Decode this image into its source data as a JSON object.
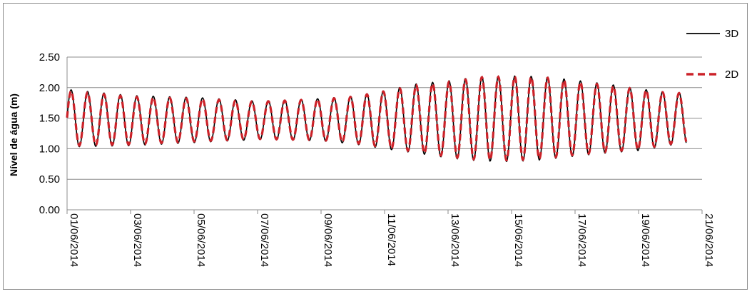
{
  "chart_data": {
    "type": "line",
    "ylabel": "Nível de água (m)",
    "xlabel": "",
    "ylim": [
      0,
      2.5
    ],
    "yticks": [
      "0.00",
      "0.50",
      "1.00",
      "1.50",
      "2.00",
      "2.50"
    ],
    "xticks": [
      "01/06/2014",
      "03/06/2014",
      "05/06/2014",
      "07/06/2014",
      "09/06/2014",
      "11/06/2014",
      "13/06/2014",
      "15/06/2014",
      "17/06/2014",
      "19/06/2014",
      "21/06/2014"
    ],
    "x_range": [
      "2014-06-01",
      "2014-06-21"
    ],
    "tide_period_hours": 12.42,
    "series": [
      {
        "name": "3D",
        "color": "#000000",
        "style": "solid",
        "x": [
          "2014-06-01",
          "2014-06-03",
          "2014-06-05",
          "2014-06-07",
          "2014-06-09",
          "2014-06-10",
          "2014-06-11",
          "2014-06-12",
          "2014-06-13",
          "2014-06-14",
          "2014-06-15",
          "2014-06-16",
          "2014-06-17",
          "2014-06-18",
          "2014-06-19",
          "2014-06-20"
        ],
        "high": [
          1.97,
          1.87,
          1.84,
          1.78,
          1.82,
          1.86,
          1.95,
          2.06,
          2.11,
          2.18,
          2.19,
          2.18,
          2.12,
          2.06,
          1.98,
          1.92
        ],
        "low": [
          1.03,
          1.05,
          1.1,
          1.15,
          1.13,
          1.08,
          1.0,
          0.93,
          0.85,
          0.8,
          0.79,
          0.82,
          0.88,
          0.93,
          0.97,
          1.06
        ]
      },
      {
        "name": "2D",
        "color": "#cc2229",
        "style": "dashed",
        "x": [
          "2014-06-01",
          "2014-06-03",
          "2014-06-05",
          "2014-06-07",
          "2014-06-09",
          "2014-06-10",
          "2014-06-11",
          "2014-06-12",
          "2014-06-13",
          "2014-06-14",
          "2014-06-15",
          "2014-06-16",
          "2014-06-17",
          "2014-06-18",
          "2014-06-19",
          "2014-06-20"
        ],
        "high": [
          1.95,
          1.85,
          1.82,
          1.77,
          1.81,
          1.85,
          1.94,
          2.04,
          2.09,
          2.17,
          2.18,
          2.17,
          2.1,
          2.04,
          1.97,
          1.91
        ],
        "low": [
          1.05,
          1.07,
          1.12,
          1.16,
          1.14,
          1.1,
          1.02,
          0.95,
          0.87,
          0.82,
          0.81,
          0.84,
          0.9,
          0.95,
          0.99,
          1.08
        ]
      }
    ],
    "end_date": "2014-06-20T12:00:00",
    "grid": true,
    "legend_position": "right"
  }
}
